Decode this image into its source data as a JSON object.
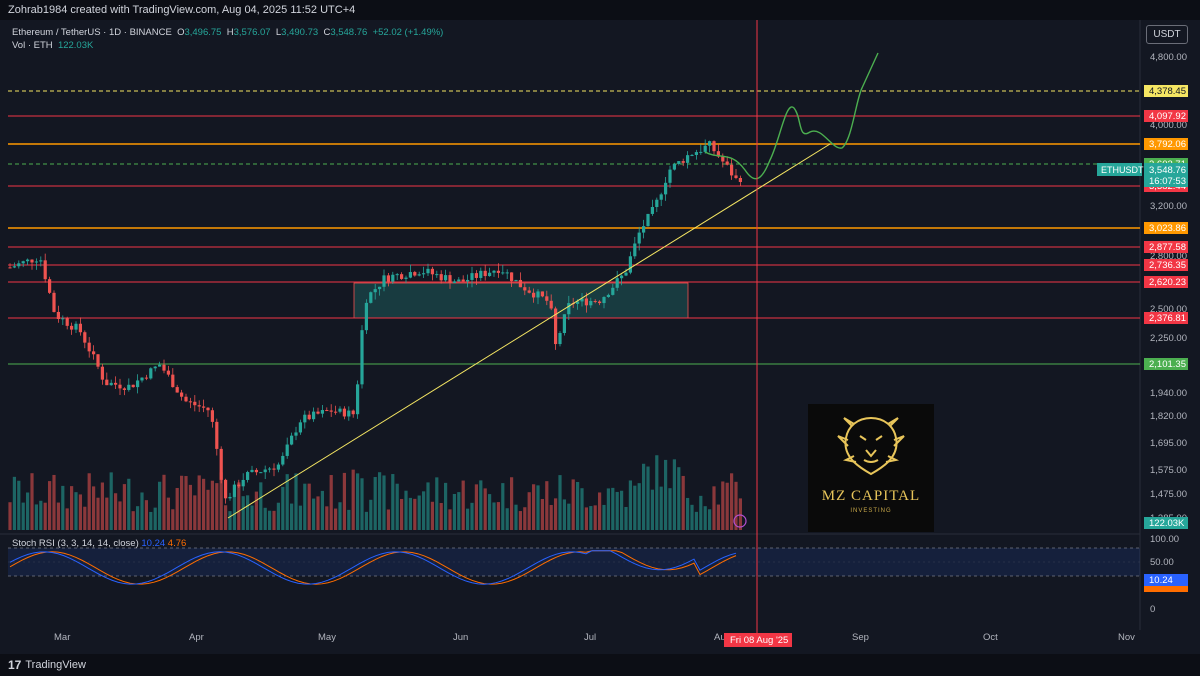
{
  "header": {
    "text": "Zohrab1984 created with TradingView.com, Aug 04, 2025 11:52 UTC+4"
  },
  "legend": {
    "symbol": "Ethereum / TetherUS · 1D · BINANCE",
    "o_label": "O",
    "o": "3,496.75",
    "h_label": "H",
    "h": "3,576.07",
    "l_label": "L",
    "l": "3,490.73",
    "c_label": "C",
    "c": "3,548.76",
    "change": "+52.02 (+1.49%)",
    "vol_label": "Vol · ETH",
    "vol": "122.03K"
  },
  "currency": "USDT",
  "rsi_legend": {
    "label": "Stoch RSI (3, 3, 14, 14, close)",
    "k": "10.24",
    "d": "4.76"
  },
  "footer": {
    "brand": "TradingView"
  },
  "logo": {
    "brand": "MZ CAPITAL",
    "sub": "INVESTING"
  },
  "chart_data": {
    "type": "candlestick",
    "price_axis_ticks": [
      "4,800.00",
      "4,000.00",
      "3,200.00",
      "2,800.00",
      "2,500.00",
      "2,250.00",
      "1,940.00",
      "1,820.00",
      "1,695.00",
      "1,575.00",
      "1,475.00",
      "1,385.00"
    ],
    "rsi_axis_ticks": [
      "100.00",
      "50.00",
      "0"
    ],
    "time_axis": [
      "Mar",
      "Apr",
      "May",
      "Jun",
      "Jul",
      "Aug",
      "Sep",
      "Oct",
      "Nov"
    ],
    "levels": [
      {
        "price": 4378.45,
        "label": "4,378.45",
        "style": "dashed",
        "color": "#f5e663"
      },
      {
        "price": 4097.92,
        "label": "4,097.92",
        "style": "solid",
        "color": "#f23645"
      },
      {
        "price": 3792.06,
        "label": "3,792.06",
        "style": "solid",
        "color": "#ff9800"
      },
      {
        "price": 3603.71,
        "label": "3,603.71",
        "style": "dashed",
        "color": "#4caf50"
      },
      {
        "price": 3382.44,
        "label": "3,382.44",
        "style": "solid",
        "color": "#f23645"
      },
      {
        "price": 3023.86,
        "label": "3,023.86",
        "style": "solid",
        "color": "#ff9800"
      },
      {
        "price": 2877.58,
        "label": "2,877.58",
        "style": "solid",
        "color": "#f23645"
      },
      {
        "price": 2736.35,
        "label": "2,736.35",
        "style": "solid",
        "color": "#f23645"
      },
      {
        "price": 2620.23,
        "label": "2,620.23",
        "style": "solid",
        "color": "#f23645"
      },
      {
        "price": 2376.81,
        "label": "2,376.81",
        "style": "solid",
        "color": "#f23645"
      },
      {
        "price": 2101.35,
        "label": "2,101.35",
        "style": "solid",
        "color": "#4caf50"
      }
    ],
    "current": {
      "symbol": "ETHUSDT",
      "price": "3,548.76",
      "countdown": "16:07:53"
    },
    "volume_badge": "122.03K",
    "rsi_badge": "10.24",
    "cursor_date": "Fri 08 Aug '25",
    "colors": {
      "up": "#26a69a",
      "down": "#ef5350",
      "trendline": "#f5e663",
      "projection": "#4caf50",
      "cursor": "#f23645"
    }
  }
}
